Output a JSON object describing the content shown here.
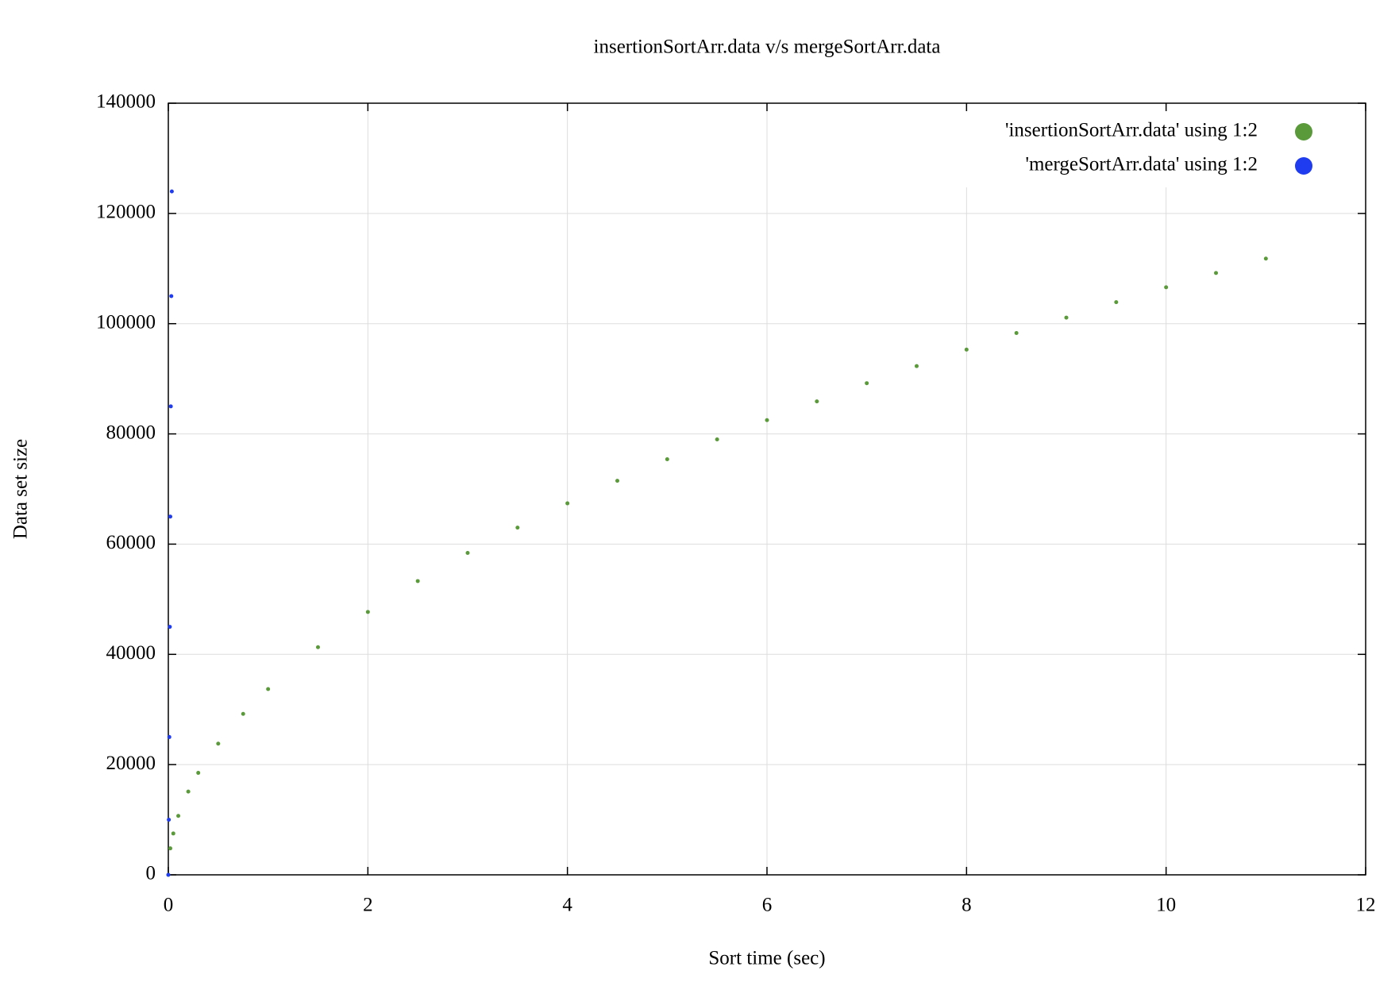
{
  "chart_data": {
    "type": "scatter",
    "title": "insertionSortArr.data v/s mergeSortArr.data",
    "x_label": "Sort time (sec)",
    "y_label": "Data set size",
    "xlim": [
      0,
      12
    ],
    "xticks": [
      0,
      2,
      4,
      6,
      8,
      10,
      12
    ],
    "ylim": [
      0,
      140000
    ],
    "yticks": [
      0,
      20000,
      40000,
      60000,
      80000,
      100000,
      120000,
      140000
    ],
    "grid": true,
    "legend": "top-right",
    "series": [
      {
        "name": "'insertionSortArr.data' using 1:2",
        "color": "#5a9a3a",
        "x": [
          0,
          0.02,
          0.05,
          0.1,
          0.2,
          0.3,
          0.5,
          0.75,
          1,
          1.5,
          2,
          2.5,
          3,
          3.5,
          4,
          4.5,
          5,
          5.5,
          6,
          6.5,
          7,
          7.5,
          8,
          8.5,
          9,
          9.5,
          10,
          10.5,
          11
        ],
        "values": [
          0,
          4800,
          7500,
          10700,
          15100,
          18500,
          23800,
          29200,
          33700,
          41300,
          47700,
          53300,
          58400,
          63000,
          67400,
          71500,
          75400,
          79000,
          82500,
          85900,
          89200,
          92300,
          95300,
          98300,
          101100,
          103900,
          106600,
          109200,
          111800
        ]
      },
      {
        "name": "'mergeSortArr.data' using 1:2",
        "color": "#1f3cf0",
        "x": [
          0,
          0.005,
          0.01,
          0.015,
          0.02,
          0.025,
          0.03,
          0.035
        ],
        "values": [
          0,
          10000,
          25000,
          45000,
          65000,
          85000,
          105000,
          124000
        ]
      }
    ]
  }
}
